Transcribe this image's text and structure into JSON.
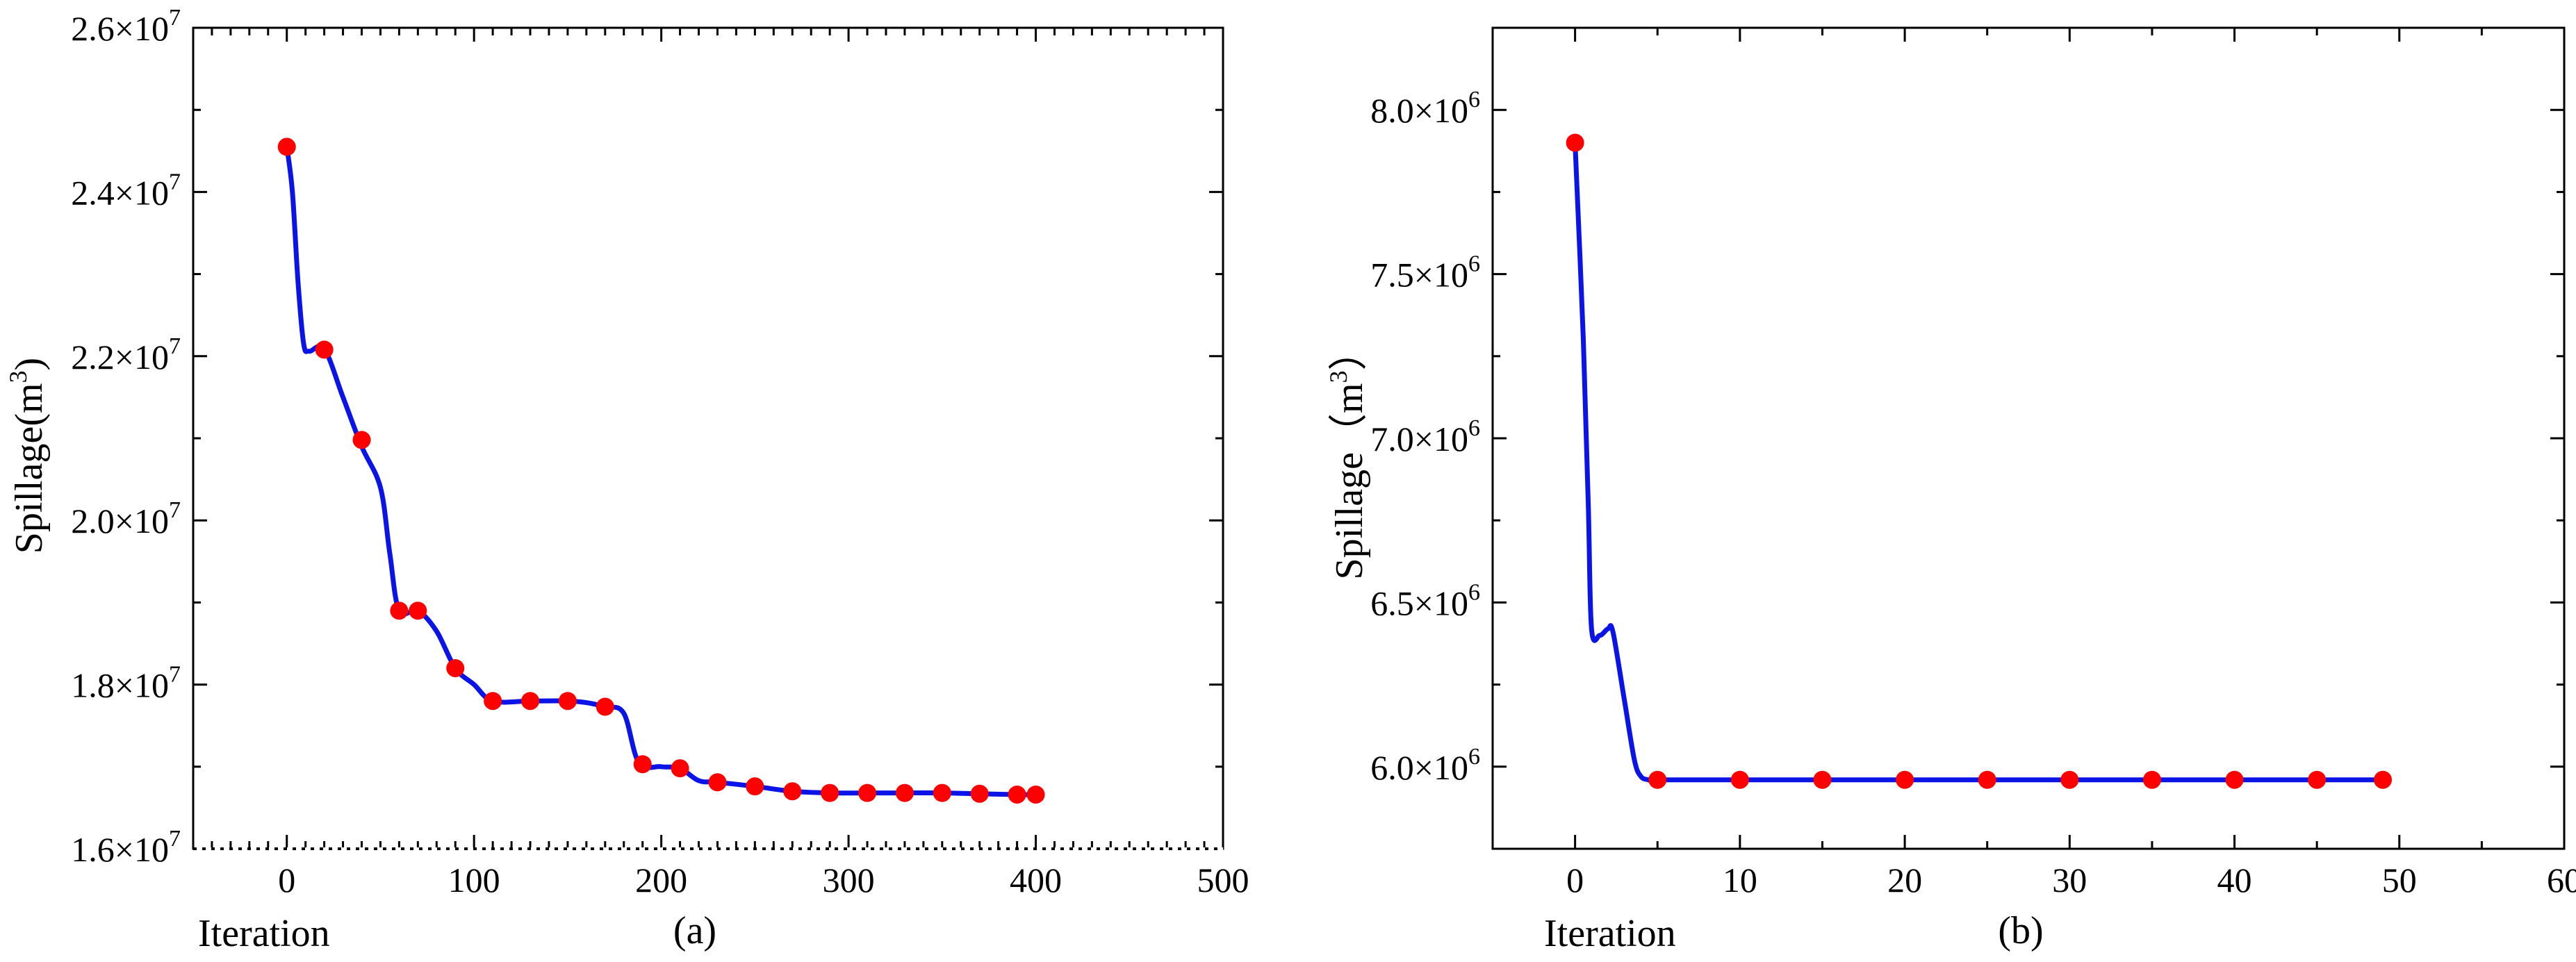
{
  "colors": {
    "line": "#0a14e6",
    "marker": "#ff0000",
    "axis": "#000000",
    "background": "#ffffff"
  },
  "chart_data": [
    {
      "type": "line",
      "panel_label": "(a)",
      "title": "",
      "xlabel": "Iteration",
      "ylabel_text": "Spillage(m",
      "ylabel_sup": "3",
      "ylabel_close": ")",
      "xlim": [
        -50,
        500
      ],
      "ylim": [
        16000000,
        26000000
      ],
      "xticks": [
        0,
        100,
        200,
        300,
        400,
        500
      ],
      "yticks": [
        {
          "value": 16000000,
          "mantissa": "1.6",
          "exp": "7"
        },
        {
          "value": 18000000,
          "mantissa": "1.8",
          "exp": "7"
        },
        {
          "value": 20000000,
          "mantissa": "2.0",
          "exp": "7"
        },
        {
          "value": 22000000,
          "mantissa": "2.2",
          "exp": "7"
        },
        {
          "value": 24000000,
          "mantissa": "2.4",
          "exp": "7"
        },
        {
          "value": 26000000,
          "mantissa": "2.6",
          "exp": "7"
        }
      ],
      "series": [
        {
          "name": "Spillage",
          "line": [
            [
              0,
              24550000
            ],
            [
              3,
              24000000
            ],
            [
              6,
              22900000
            ],
            [
              9,
              22150000
            ],
            [
              12,
              22060000
            ],
            [
              20,
              22090000
            ],
            [
              30,
              21500000
            ],
            [
              40,
              20900000
            ],
            [
              50,
              20400000
            ],
            [
              55,
              19600000
            ],
            [
              60,
              18900000
            ],
            [
              70,
              18900000
            ],
            [
              80,
              18650000
            ],
            [
              90,
              18200000
            ],
            [
              100,
              18000000
            ],
            [
              110,
              17800000
            ],
            [
              130,
              17800000
            ],
            [
              150,
              17800000
            ],
            [
              160,
              17780000
            ],
            [
              170,
              17730000
            ],
            [
              180,
              17650000
            ],
            [
              188,
              17050000
            ],
            [
              200,
              17000000
            ],
            [
              210,
              16980000
            ],
            [
              220,
              16830000
            ],
            [
              230,
              16810000
            ],
            [
              250,
              16760000
            ],
            [
              270,
              16700000
            ],
            [
              290,
              16680000
            ],
            [
              310,
              16680000
            ],
            [
              330,
              16680000
            ],
            [
              350,
              16680000
            ],
            [
              370,
              16670000
            ],
            [
              390,
              16660000
            ],
            [
              400,
              16660000
            ]
          ],
          "markers": [
            [
              0,
              24550000
            ],
            [
              20,
              22080000
            ],
            [
              40,
              20980000
            ],
            [
              60,
              18900000
            ],
            [
              70,
              18900000
            ],
            [
              90,
              18200000
            ],
            [
              110,
              17800000
            ],
            [
              130,
              17800000
            ],
            [
              150,
              17800000
            ],
            [
              170,
              17730000
            ],
            [
              190,
              17030000
            ],
            [
              210,
              16980000
            ],
            [
              230,
              16810000
            ],
            [
              250,
              16760000
            ],
            [
              270,
              16700000
            ],
            [
              290,
              16680000
            ],
            [
              310,
              16680000
            ],
            [
              330,
              16680000
            ],
            [
              350,
              16680000
            ],
            [
              370,
              16670000
            ],
            [
              390,
              16660000
            ],
            [
              400,
              16660000
            ]
          ]
        }
      ]
    },
    {
      "type": "line",
      "panel_label": "(b)",
      "title": "",
      "xlabel": "Iteration",
      "ylabel_text": "Spillage（m",
      "ylabel_sup": "3",
      "ylabel_close": "）",
      "xlim": [
        -5,
        60
      ],
      "ylim": [
        5750000,
        8250000
      ],
      "xticks": [
        0,
        10,
        20,
        30,
        40,
        50,
        60
      ],
      "yticks": [
        {
          "value": 6000000,
          "mantissa": "6.0",
          "exp": "6"
        },
        {
          "value": 6500000,
          "mantissa": "6.5",
          "exp": "6"
        },
        {
          "value": 7000000,
          "mantissa": "7.0",
          "exp": "6"
        },
        {
          "value": 7500000,
          "mantissa": "7.5",
          "exp": "6"
        },
        {
          "value": 8000000,
          "mantissa": "8.0",
          "exp": "6"
        }
      ],
      "series": [
        {
          "name": "Spillage",
          "line": [
            [
              0,
              7900000
            ],
            [
              0.5,
              7300000
            ],
            [
              0.8,
              6800000
            ],
            [
              1,
              6420000
            ],
            [
              1.5,
              6400000
            ],
            [
              2,
              6420000
            ],
            [
              2.3,
              6410000
            ],
            [
              3,
              6200000
            ],
            [
              3.6,
              6020000
            ],
            [
              4,
              5970000
            ],
            [
              4.5,
              5960000
            ],
            [
              5,
              5960000
            ],
            [
              10,
              5960000
            ],
            [
              20,
              5960000
            ],
            [
              30,
              5960000
            ],
            [
              40,
              5960000
            ],
            [
              49,
              5960000
            ]
          ],
          "markers": [
            [
              0,
              7900000
            ],
            [
              5,
              5960000
            ],
            [
              10,
              5960000
            ],
            [
              15,
              5960000
            ],
            [
              20,
              5960000
            ],
            [
              25,
              5960000
            ],
            [
              30,
              5960000
            ],
            [
              35,
              5960000
            ],
            [
              40,
              5960000
            ],
            [
              45,
              5960000
            ],
            [
              49,
              5960000
            ]
          ]
        }
      ]
    }
  ]
}
